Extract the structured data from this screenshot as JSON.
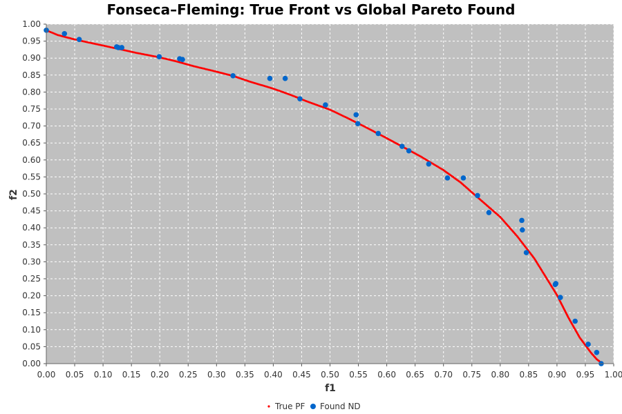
{
  "chart_data": {
    "type": "scatter",
    "title": "Fonseca–Fleming: True Front vs Global Pareto Found",
    "xlabel": "f1",
    "ylabel": "f2",
    "xlim": [
      0.0,
      1.0
    ],
    "ylim": [
      0.0,
      1.0
    ],
    "x_ticks": [
      "0.00",
      "0.05",
      "0.10",
      "0.15",
      "0.20",
      "0.25",
      "0.30",
      "0.35",
      "0.40",
      "0.45",
      "0.50",
      "0.55",
      "0.60",
      "0.65",
      "0.70",
      "0.75",
      "0.80",
      "0.85",
      "0.90",
      "0.95",
      "1.00"
    ],
    "y_ticks": [
      "0.00",
      "0.05",
      "0.10",
      "0.15",
      "0.20",
      "0.25",
      "0.30",
      "0.35",
      "0.40",
      "0.45",
      "0.50",
      "0.55",
      "0.60",
      "0.65",
      "0.70",
      "0.75",
      "0.80",
      "0.85",
      "0.90",
      "0.95",
      "1.00"
    ],
    "grid": true,
    "legend_position": "bottom-center",
    "colors": {
      "plot_background": "#c0c0c0",
      "grid": "#ffffff",
      "true_pf": "#ff0000",
      "found_nd": "#0066cc"
    },
    "series": [
      {
        "name": "True PF",
        "style": "dotted-line",
        "x": [
          0.0,
          0.02,
          0.05,
          0.08,
          0.1,
          0.13,
          0.16,
          0.2,
          0.23,
          0.26,
          0.3,
          0.33,
          0.36,
          0.4,
          0.43,
          0.46,
          0.5,
          0.53,
          0.56,
          0.6,
          0.63,
          0.66,
          0.7,
          0.73,
          0.76,
          0.8,
          0.83,
          0.86,
          0.9,
          0.92,
          0.94,
          0.96,
          0.97,
          0.98
        ],
        "y": [
          0.982,
          0.968,
          0.955,
          0.944,
          0.937,
          0.926,
          0.915,
          0.902,
          0.89,
          0.876,
          0.86,
          0.847,
          0.83,
          0.81,
          0.792,
          0.772,
          0.748,
          0.724,
          0.699,
          0.664,
          0.637,
          0.61,
          0.57,
          0.534,
          0.49,
          0.432,
          0.375,
          0.31,
          0.202,
          0.136,
          0.077,
          0.032,
          0.013,
          0.0
        ]
      },
      {
        "name": "Found ND",
        "style": "points",
        "x": [
          0.0,
          0.032,
          0.058,
          0.124,
          0.127,
          0.133,
          0.199,
          0.235,
          0.24,
          0.329,
          0.394,
          0.421,
          0.447,
          0.492,
          0.546,
          0.549,
          0.585,
          0.627,
          0.639,
          0.674,
          0.707,
          0.735,
          0.76,
          0.78,
          0.838,
          0.839,
          0.846,
          0.897,
          0.898,
          0.906,
          0.932,
          0.955,
          0.97,
          0.978
        ],
        "y": [
          0.982,
          0.972,
          0.955,
          0.933,
          0.931,
          0.931,
          0.904,
          0.898,
          0.896,
          0.848,
          0.84,
          0.84,
          0.78,
          0.762,
          0.733,
          0.707,
          0.678,
          0.64,
          0.627,
          0.588,
          0.547,
          0.547,
          0.495,
          0.445,
          0.422,
          0.394,
          0.327,
          0.233,
          0.236,
          0.195,
          0.125,
          0.057,
          0.033,
          0.0
        ]
      }
    ]
  }
}
